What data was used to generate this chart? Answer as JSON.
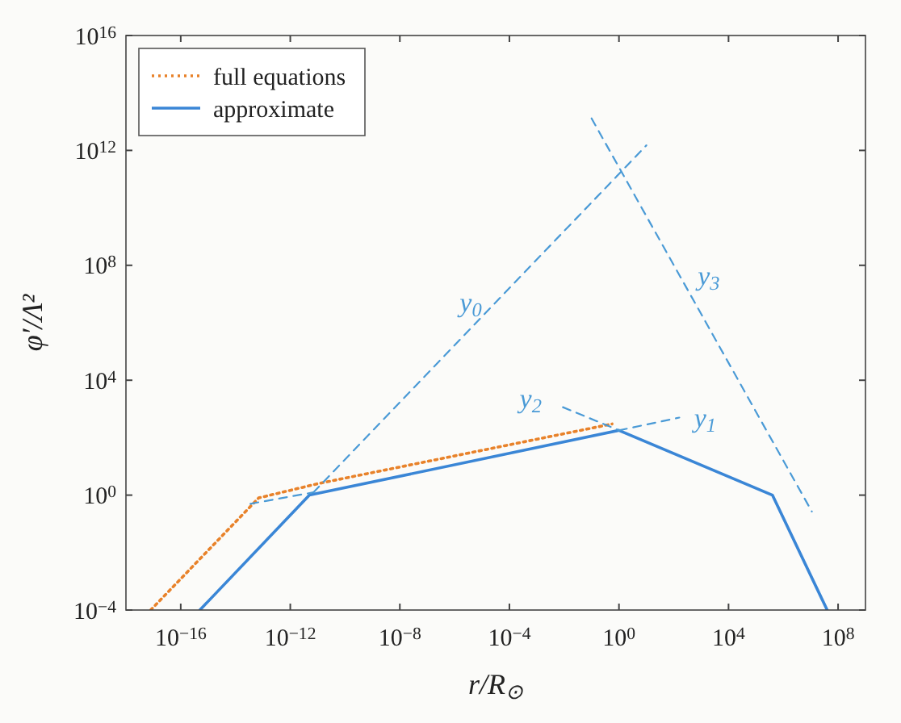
{
  "chart_data": {
    "type": "line",
    "xlabel": "r/R$_{⊙}$",
    "ylabel": "φ′/Λ²",
    "log": "xy",
    "grid": false,
    "legend": "top left",
    "xlim": [
      1e-18,
      1000000000.0
    ],
    "ylim": [
      0.0001,
      1e+16
    ],
    "xticks": [
      {
        "value": 1e-16,
        "label": "10$^{−16}$"
      },
      {
        "value": 1e-12,
        "label": "10$^{−12}$"
      },
      {
        "value": 1e-08,
        "label": "10$^{−8}$"
      },
      {
        "value": 0.0001,
        "label": "10$^{−4}$"
      },
      {
        "value": 1,
        "label": "10$^{0}$"
      },
      {
        "value": 10000.0,
        "label": "10$^{4}$"
      },
      {
        "value": 100000000.0,
        "label": "10$^{8}$"
      }
    ],
    "yticks": [
      {
        "value": 0.0001,
        "label": "10$^{−4}$"
      },
      {
        "value": 1,
        "label": "10$^{0}$"
      },
      {
        "value": 10000.0,
        "label": "10$^{4}$"
      },
      {
        "value": 100000000.0,
        "label": "10$^{8}$"
      },
      {
        "value": 1000000000000.0,
        "label": "10$^{12}$"
      },
      {
        "value": 1e+16,
        "label": "10$^{16}$"
      }
    ],
    "series": [
      {
        "name": "full equations",
        "color": "#e8822a",
        "line_style": "dotted",
        "x": [
          8e-18,
          7e-14,
          1e-11,
          0.56
        ],
        "values": [
          0.0001,
          0.8,
          2.5,
          300
        ]
      },
      {
        "name": "approximate",
        "color": "#3a86d6",
        "line_style": "solid",
        "x": [
          5e-16,
          5e-12,
          1,
          400000.0,
          40000000.0
        ],
        "values": [
          0.0001,
          1,
          180,
          1,
          0.0001
        ]
      },
      {
        "color": "#4a9ad6",
        "line_style": "dashed",
        "x": [
          3.5e-14,
          7e-12
        ],
        "values": [
          0.5,
          1.25
        ]
      },
      {
        "name": "y$_{0}$",
        "color": "#4a9ad6",
        "line_style": "dashed",
        "x": [
          7e-12,
          10
        ],
        "values": [
          1.25,
          1500000000000.0
        ]
      },
      {
        "name": "y$_{2}$",
        "color": "#4a9ad6",
        "line_style": "dashed",
        "x": [
          0.009,
          1
        ],
        "values": [
          1150,
          180
        ]
      },
      {
        "name": "y$_{1}$",
        "color": "#4a9ad6",
        "line_style": "dashed",
        "x": [
          1,
          160
        ],
        "values": [
          180,
          500
        ]
      },
      {
        "name": "y$_{3}$",
        "color": "#4a9ad6",
        "line_style": "dashed",
        "x": [
          0.1,
          11000000.0
        ],
        "values": [
          13000000000000.0,
          0.27
        ]
      }
    ]
  }
}
